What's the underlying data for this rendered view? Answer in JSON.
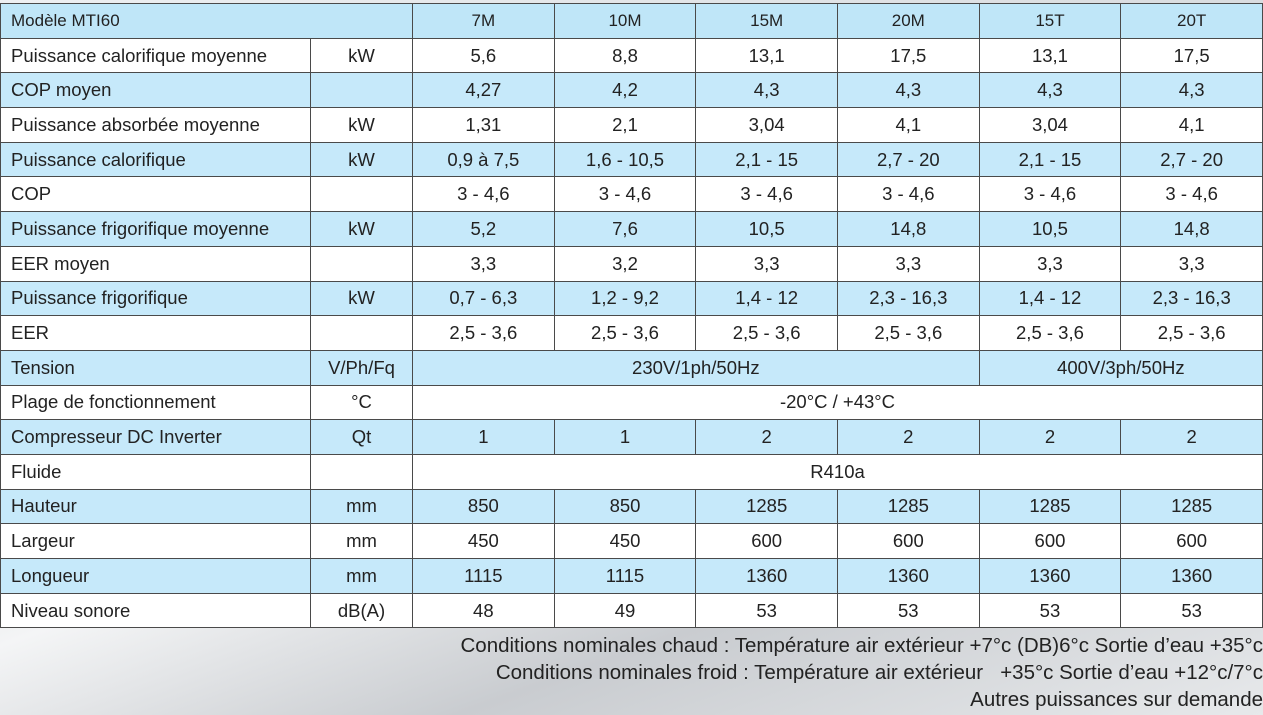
{
  "header": {
    "title": "Modèle MTI60",
    "columns": [
      "7M",
      "10M",
      "15M",
      "20M",
      "15T",
      "20T"
    ]
  },
  "rows": [
    {
      "label": "Puissance calorifique moyenne",
      "unit": "kW",
      "values": [
        "5,6",
        "8,8",
        "13,1",
        "17,5",
        "13,1",
        "17,5"
      ]
    },
    {
      "label": "COP moyen",
      "unit": null,
      "values": [
        "4,27",
        "4,2",
        "4,3",
        "4,3",
        "4,3",
        "4,3"
      ]
    },
    {
      "label": "Puissance absorbée moyenne",
      "unit": "kW",
      "values": [
        "1,31",
        "2,1",
        "3,04",
        "4,1",
        "3,04",
        "4,1"
      ]
    },
    {
      "label": "Puissance calorifique",
      "unit": "kW",
      "values": [
        "0,9 à 7,5",
        "1,6 - 10,5",
        "2,1 - 15",
        "2,7 - 20",
        "2,1 - 15",
        "2,7 - 20"
      ]
    },
    {
      "label": "COP",
      "unit": null,
      "values": [
        "3 - 4,6",
        "3 - 4,6",
        "3 - 4,6",
        "3 - 4,6",
        "3 - 4,6",
        "3 - 4,6"
      ]
    },
    {
      "label": "Puissance frigorifique moyenne",
      "unit": "kW",
      "values": [
        "5,2",
        "7,6",
        "10,5",
        "14,8",
        "10,5",
        "14,8"
      ]
    },
    {
      "label": "EER moyen",
      "unit": null,
      "values": [
        "3,3",
        "3,2",
        "3,3",
        "3,3",
        "3,3",
        "3,3"
      ]
    },
    {
      "label": "Puissance frigorifique",
      "unit": "kW",
      "values": [
        "0,7 - 6,3",
        "1,2 - 9,2",
        "1,4 - 12",
        "2,3 - 16,3",
        "1,4 - 12",
        "2,3 - 16,3"
      ]
    },
    {
      "label": "EER",
      "unit": null,
      "values": [
        "2,5 - 3,6",
        "2,5 - 3,6",
        "2,5 - 3,6",
        "2,5 - 3,6",
        "2,5 - 3,6",
        "2,5 - 3,6"
      ]
    },
    {
      "label": "Tension",
      "unit": "V/Ph/Fq",
      "values": [
        "230V/1ph/50Hz",
        "400V/3ph/50Hz"
      ]
    },
    {
      "label": "Plage de fonctionnement",
      "unit": "°C",
      "values": [
        "-20°C / +43°C"
      ]
    },
    {
      "label": "Compresseur DC Inverter",
      "unit": "Qt",
      "values": [
        "1",
        "1",
        "2",
        "2",
        "2",
        "2"
      ]
    },
    {
      "label": "Fluide",
      "unit": null,
      "values": [
        "R410a"
      ]
    },
    {
      "label": "Hauteur",
      "unit": "mm",
      "values": [
        "850",
        "850",
        "1285",
        "1285",
        "1285",
        "1285"
      ]
    },
    {
      "label": "Largeur",
      "unit": "mm",
      "values": [
        "450",
        "450",
        "600",
        "600",
        "600",
        "600"
      ]
    },
    {
      "label": "Longueur",
      "unit": "mm",
      "values": [
        "1115",
        "1115",
        "1360",
        "1360",
        "1360",
        "1360"
      ]
    },
    {
      "label": "Niveau sonore",
      "unit": "dB(A)",
      "values": [
        "48",
        "49",
        "53",
        "53",
        "53",
        "53"
      ]
    }
  ],
  "notes": [
    "Conditions nominales chaud : Température air extérieur +7°c (DB)6°c Sortie d’eau +35°c",
    "Conditions nominales froid : Température air extérieur   +35°c Sortie d’eau +12°c/7°c",
    "Autres puissances sur demande"
  ]
}
